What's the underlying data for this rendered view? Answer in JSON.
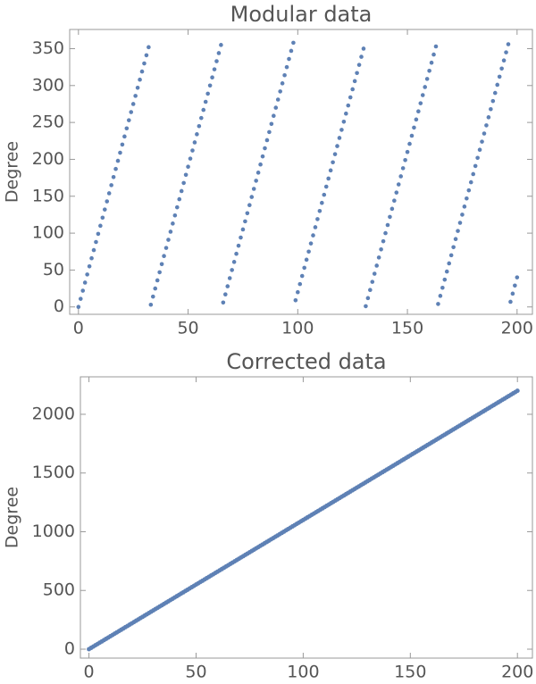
{
  "chart_data": [
    {
      "type": "scatter",
      "title": "Modular data",
      "y_label": "Degree",
      "color": "#5e81b5",
      "xlim": [
        -4,
        207
      ],
      "ylim": [
        -10,
        376
      ],
      "xticks": [
        0,
        50,
        100,
        150,
        200
      ],
      "yticks": [
        0,
        50,
        100,
        150,
        200,
        250,
        300,
        350
      ],
      "x": [
        0,
        1,
        2,
        3,
        4,
        5,
        6,
        7,
        8,
        9,
        10,
        11,
        12,
        13,
        14,
        15,
        16,
        17,
        18,
        19,
        20,
        21,
        22,
        23,
        24,
        25,
        26,
        27,
        28,
        29,
        30,
        31,
        32,
        33,
        34,
        35,
        36,
        37,
        38,
        39,
        40,
        41,
        42,
        43,
        44,
        45,
        46,
        47,
        48,
        49,
        50,
        51,
        52,
        53,
        54,
        55,
        56,
        57,
        58,
        59,
        60,
        61,
        62,
        63,
        64,
        65,
        66,
        67,
        68,
        69,
        70,
        71,
        72,
        73,
        74,
        75,
        76,
        77,
        78,
        79,
        80,
        81,
        82,
        83,
        84,
        85,
        86,
        87,
        88,
        89,
        90,
        91,
        92,
        93,
        94,
        95,
        96,
        97,
        98,
        99,
        100,
        101,
        102,
        103,
        104,
        105,
        106,
        107,
        108,
        109,
        110,
        111,
        112,
        113,
        114,
        115,
        116,
        117,
        118,
        119,
        120,
        121,
        122,
        123,
        124,
        125,
        126,
        127,
        128,
        129,
        130,
        131,
        132,
        133,
        134,
        135,
        136,
        137,
        138,
        139,
        140,
        141,
        142,
        143,
        144,
        145,
        146,
        147,
        148,
        149,
        150,
        151,
        152,
        153,
        154,
        155,
        156,
        157,
        158,
        159,
        160,
        161,
        162,
        163,
        164,
        165,
        166,
        167,
        168,
        169,
        170,
        171,
        172,
        173,
        174,
        175,
        176,
        177,
        178,
        179,
        180,
        181,
        182,
        183,
        184,
        185,
        186,
        187,
        188,
        189,
        190,
        191,
        192,
        193,
        194,
        195,
        196,
        197,
        198,
        199,
        200
      ],
      "values": [
        0,
        11,
        22,
        33,
        44,
        55,
        66,
        77,
        88,
        99,
        110,
        121,
        132,
        143,
        154,
        165,
        176,
        187,
        198,
        209,
        220,
        231,
        242,
        253,
        264,
        275,
        286,
        297,
        308,
        319,
        330,
        341,
        352,
        3,
        14,
        25,
        36,
        47,
        58,
        69,
        80,
        91,
        102,
        113,
        124,
        135,
        146,
        157,
        168,
        179,
        190,
        201,
        212,
        223,
        234,
        245,
        256,
        267,
        278,
        289,
        300,
        311,
        322,
        333,
        344,
        355,
        6,
        17,
        28,
        39,
        50,
        61,
        72,
        83,
        94,
        105,
        116,
        127,
        138,
        149,
        160,
        171,
        182,
        193,
        204,
        215,
        226,
        237,
        248,
        259,
        270,
        281,
        292,
        303,
        314,
        325,
        336,
        347,
        358,
        9,
        20,
        31,
        42,
        53,
        64,
        75,
        86,
        97,
        108,
        119,
        130,
        141,
        152,
        163,
        174,
        185,
        196,
        207,
        218,
        229,
        240,
        251,
        262,
        273,
        284,
        295,
        306,
        317,
        328,
        339,
        350,
        1,
        12,
        23,
        34,
        45,
        56,
        67,
        78,
        89,
        100,
        111,
        122,
        133,
        144,
        155,
        166,
        177,
        188,
        199,
        210,
        221,
        232,
        243,
        254,
        265,
        276,
        287,
        298,
        309,
        320,
        331,
        342,
        353,
        4,
        15,
        26,
        37,
        48,
        59,
        70,
        81,
        92,
        103,
        114,
        125,
        136,
        147,
        158,
        169,
        180,
        191,
        202,
        213,
        224,
        235,
        246,
        257,
        268,
        279,
        290,
        301,
        312,
        323,
        334,
        345,
        356,
        7,
        18,
        29,
        40
      ]
    },
    {
      "type": "scatter",
      "title": "Corrected data",
      "y_label": "Degree",
      "color": "#5e81b5",
      "xlim": [
        -4,
        207
      ],
      "ylim": [
        -76,
        2319
      ],
      "xticks": [
        0,
        50,
        100,
        150,
        200
      ],
      "yticks": [
        0,
        500,
        1000,
        1500,
        2000
      ],
      "x": [
        0,
        1,
        2,
        3,
        4,
        5,
        6,
        7,
        8,
        9,
        10,
        11,
        12,
        13,
        14,
        15,
        16,
        17,
        18,
        19,
        20,
        21,
        22,
        23,
        24,
        25,
        26,
        27,
        28,
        29,
        30,
        31,
        32,
        33,
        34,
        35,
        36,
        37,
        38,
        39,
        40,
        41,
        42,
        43,
        44,
        45,
        46,
        47,
        48,
        49,
        50,
        51,
        52,
        53,
        54,
        55,
        56,
        57,
        58,
        59,
        60,
        61,
        62,
        63,
        64,
        65,
        66,
        67,
        68,
        69,
        70,
        71,
        72,
        73,
        74,
        75,
        76,
        77,
        78,
        79,
        80,
        81,
        82,
        83,
        84,
        85,
        86,
        87,
        88,
        89,
        90,
        91,
        92,
        93,
        94,
        95,
        96,
        97,
        98,
        99,
        100,
        101,
        102,
        103,
        104,
        105,
        106,
        107,
        108,
        109,
        110,
        111,
        112,
        113,
        114,
        115,
        116,
        117,
        118,
        119,
        120,
        121,
        122,
        123,
        124,
        125,
        126,
        127,
        128,
        129,
        130,
        131,
        132,
        133,
        134,
        135,
        136,
        137,
        138,
        139,
        140,
        141,
        142,
        143,
        144,
        145,
        146,
        147,
        148,
        149,
        150,
        151,
        152,
        153,
        154,
        155,
        156,
        157,
        158,
        159,
        160,
        161,
        162,
        163,
        164,
        165,
        166,
        167,
        168,
        169,
        170,
        171,
        172,
        173,
        174,
        175,
        176,
        177,
        178,
        179,
        180,
        181,
        182,
        183,
        184,
        185,
        186,
        187,
        188,
        189,
        190,
        191,
        192,
        193,
        194,
        195,
        196,
        197,
        198,
        199,
        200
      ],
      "values": [
        0,
        11,
        22,
        33,
        44,
        55,
        66,
        77,
        88,
        99,
        110,
        121,
        132,
        143,
        154,
        165,
        176,
        187,
        198,
        209,
        220,
        231,
        242,
        253,
        264,
        275,
        286,
        297,
        308,
        319,
        330,
        341,
        352,
        363,
        374,
        385,
        396,
        407,
        418,
        429,
        440,
        451,
        462,
        473,
        484,
        495,
        506,
        517,
        528,
        539,
        550,
        561,
        572,
        583,
        594,
        605,
        616,
        627,
        638,
        649,
        660,
        671,
        682,
        693,
        704,
        715,
        726,
        737,
        748,
        759,
        770,
        781,
        792,
        803,
        814,
        825,
        836,
        847,
        858,
        869,
        880,
        891,
        902,
        913,
        924,
        935,
        946,
        957,
        968,
        979,
        990,
        1001,
        1012,
        1023,
        1034,
        1045,
        1056,
        1067,
        1078,
        1089,
        1100,
        1111,
        1122,
        1133,
        1144,
        1155,
        1166,
        1177,
        1188,
        1199,
        1210,
        1221,
        1232,
        1243,
        1254,
        1265,
        1276,
        1287,
        1298,
        1309,
        1320,
        1331,
        1342,
        1353,
        1364,
        1375,
        1386,
        1397,
        1408,
        1419,
        1430,
        1441,
        1452,
        1463,
        1474,
        1485,
        1496,
        1507,
        1518,
        1529,
        1540,
        1551,
        1562,
        1573,
        1584,
        1595,
        1606,
        1617,
        1628,
        1639,
        1650,
        1661,
        1672,
        1683,
        1694,
        1705,
        1716,
        1727,
        1738,
        1749,
        1760,
        1771,
        1782,
        1793,
        1804,
        1815,
        1826,
        1837,
        1848,
        1859,
        1870,
        1881,
        1892,
        1903,
        1914,
        1925,
        1936,
        1947,
        1958,
        1969,
        1980,
        1991,
        2002,
        2013,
        2024,
        2035,
        2046,
        2057,
        2068,
        2079,
        2090,
        2101,
        2112,
        2123,
        2134,
        2145,
        2156,
        2167,
        2178,
        2189,
        2200
      ]
    }
  ]
}
